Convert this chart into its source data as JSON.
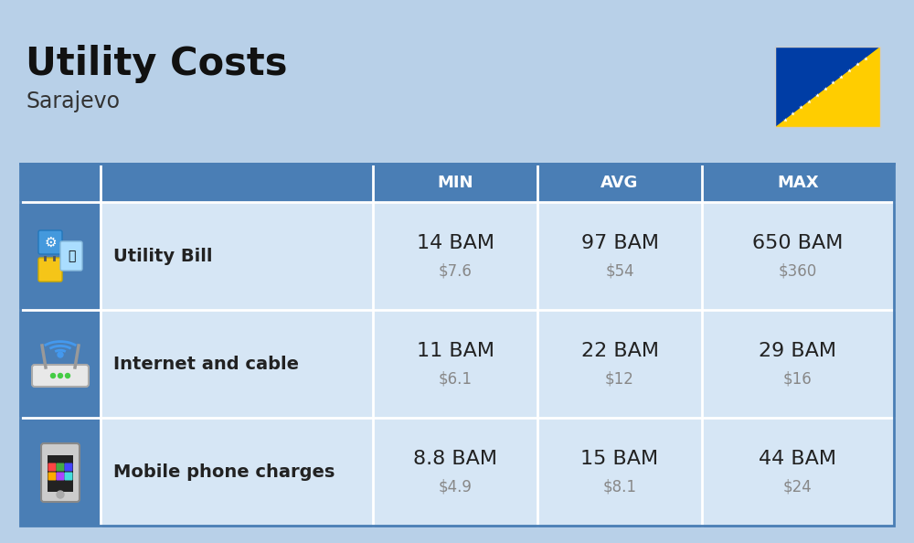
{
  "title": "Utility Costs",
  "subtitle": "Sarajevo",
  "background_color": "#b8d0e8",
  "header_bg_color": "#4a7eb5",
  "header_text_color": "#ffffff",
  "row_bg_color": "#d6e6f5",
  "icon_col_bg": "#4a7eb5",
  "table_border_color": "#4a7eb5",
  "columns": [
    "MIN",
    "AVG",
    "MAX"
  ],
  "rows": [
    {
      "label": "Utility Bill",
      "min_bam": "14 BAM",
      "min_usd": "$7.6",
      "avg_bam": "97 BAM",
      "avg_usd": "$54",
      "max_bam": "650 BAM",
      "max_usd": "$360",
      "icon": "utility"
    },
    {
      "label": "Internet and cable",
      "min_bam": "11 BAM",
      "min_usd": "$6.1",
      "avg_bam": "22 BAM",
      "avg_usd": "$12",
      "max_bam": "29 BAM",
      "max_usd": "$16",
      "icon": "internet"
    },
    {
      "label": "Mobile phone charges",
      "min_bam": "8.8 BAM",
      "min_usd": "$4.9",
      "avg_bam": "15 BAM",
      "avg_usd": "$8.1",
      "max_bam": "44 BAM",
      "max_usd": "$24",
      "icon": "mobile"
    }
  ],
  "title_fontsize": 30,
  "subtitle_fontsize": 17,
  "header_fontsize": 13,
  "label_fontsize": 14,
  "value_fontsize": 16,
  "usd_fontsize": 12,
  "title_color": "#111111",
  "subtitle_color": "#333333",
  "value_color": "#222222",
  "usd_color": "#888888"
}
